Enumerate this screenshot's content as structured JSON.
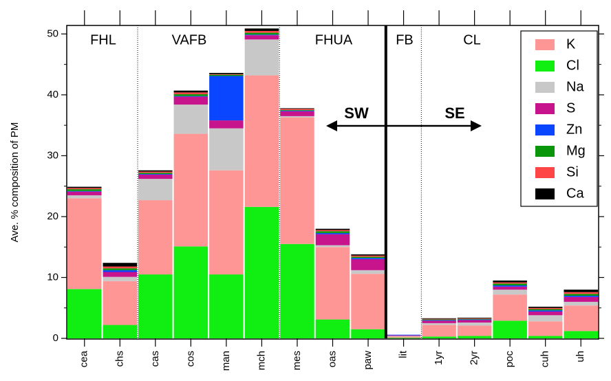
{
  "chart_data": {
    "type": "stacked_bar",
    "y_label": "Ave. % composition of PM",
    "categories": [
      "cea",
      "chs",
      "cas",
      "cos",
      "man",
      "mch",
      "mes",
      "oas",
      "paw",
      "lit",
      "1yr",
      "2yr",
      "poc",
      "cuh",
      "uh"
    ],
    "groups": [
      "FHL",
      "VAFB",
      "FHUA",
      "FB",
      "CL"
    ],
    "annotations": [
      "SW",
      "SE"
    ],
    "ylim": [
      0,
      51.4
    ],
    "yticks": [
      0,
      10,
      20,
      30,
      40,
      50
    ],
    "legend_position": "upper right",
    "series": [
      {
        "name": "K",
        "color": "#ff9696",
        "values": [
          14.9,
          7.2,
          12.2,
          18.5,
          17.1,
          21.6,
          20.8,
          11.9,
          9.1,
          0.2,
          1.9,
          1.7,
          4.3,
          2.4,
          4.2
        ]
      },
      {
        "name": "Cl",
        "color": "#11ee11",
        "values": [
          8.1,
          2.2,
          10.5,
          15.1,
          10.5,
          21.6,
          15.5,
          3.1,
          1.5,
          0.1,
          0.3,
          0.4,
          2.9,
          0.4,
          1.2
        ]
      },
      {
        "name": "Na",
        "color": "#c8c8c8",
        "values": [
          0.5,
          0.7,
          3.5,
          4.8,
          6.9,
          5.9,
          0.2,
          0.3,
          0.6,
          0.1,
          0.3,
          0.5,
          0.8,
          1.0,
          0.6
        ]
      },
      {
        "name": "S",
        "color": "#c8148c",
        "values": [
          0.6,
          0.8,
          0.7,
          1.3,
          1.3,
          0.7,
          0.8,
          1.8,
          1.8,
          0.1,
          0.4,
          0.4,
          0.5,
          0.6,
          0.8
        ]
      },
      {
        "name": "Zn",
        "color": "#0a46ff",
        "values": [
          0.1,
          0.3,
          0.1,
          0.1,
          7.3,
          0.1,
          0.1,
          0.2,
          0.2,
          0.1,
          0.1,
          0.1,
          0.2,
          0.2,
          0.2
        ]
      },
      {
        "name": "Mg",
        "color": "#0a960a",
        "values": [
          0.3,
          0.3,
          0.2,
          0.3,
          0.2,
          0.3,
          0.1,
          0.3,
          0.2,
          0,
          0.1,
          0.1,
          0.3,
          0.2,
          0.3
        ]
      },
      {
        "name": "Si",
        "color": "#ff4646",
        "values": [
          0.2,
          0.3,
          0.2,
          0.3,
          0.1,
          0.3,
          0.2,
          0.2,
          0.2,
          0,
          0.1,
          0.1,
          0.2,
          0.2,
          0.3
        ]
      },
      {
        "name": "Ca",
        "color": "#000000",
        "values": [
          0.2,
          0.6,
          0.2,
          0.3,
          0.2,
          0.4,
          0.1,
          0.2,
          0.2,
          0,
          0.1,
          0.1,
          0.3,
          0.2,
          0.4
        ]
      }
    ]
  }
}
